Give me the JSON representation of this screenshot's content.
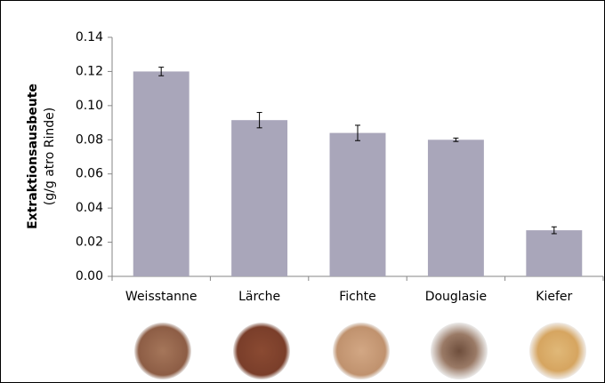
{
  "chart_data": {
    "type": "bar",
    "y_label_lines": [
      "Extraktionsausbeute",
      "(g/g atro Rinde)"
    ],
    "categories": [
      "Weisstanne",
      "Lärche",
      "Fichte",
      "Douglasie",
      "Kiefer"
    ],
    "series": [
      {
        "color": "#a9a6ba",
        "values": [
          0.12,
          0.0915,
          0.084,
          0.08,
          0.027
        ],
        "errors": [
          0.0025,
          0.0045,
          0.0045,
          0.001,
          0.002
        ]
      }
    ],
    "ylim": [
      0,
      0.14
    ],
    "yticks": [
      {
        "value": 0,
        "label": "0.00"
      },
      {
        "value": 0.02,
        "label": "0.02"
      },
      {
        "value": 0.04,
        "label": "0.04"
      },
      {
        "value": 0.06,
        "label": "0.06"
      },
      {
        "value": 0.08,
        "label": "0.08"
      },
      {
        "value": 0.1,
        "label": "0.10"
      },
      {
        "value": 0.12,
        "label": "0.12"
      },
      {
        "value": 0.14,
        "label": "0.14"
      }
    ],
    "grid": false
  }
}
